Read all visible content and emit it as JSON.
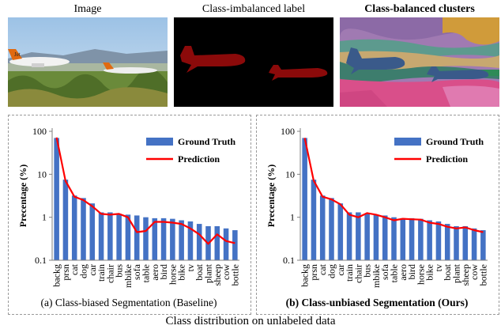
{
  "panels": {
    "image_title": "Image",
    "label_title": "Class-imbalanced label",
    "clusters_title": "Class-balanced clusters"
  },
  "image_lettering": "Jet",
  "colors": {
    "ground_truth": "#4472C4",
    "prediction": "#FF0000",
    "label_red": "#8B0A0A",
    "border": "#9a9a9a"
  },
  "footer": {
    "caption": "Class distribution on unlabeled data"
  },
  "chart_data": [
    {
      "type": "bar",
      "caption": "(a) Class-biased Segmentation (Baseline)",
      "caption_bold": false,
      "ylabel": "Precentage (%)",
      "xlabel": "",
      "scale": "log",
      "ylim": [
        0.1,
        100
      ],
      "yticks": [
        "100",
        "10",
        "1",
        "0.1"
      ],
      "legend_position": "top-right",
      "categories": [
        "backg",
        "prsn",
        "cat",
        "dog",
        "car",
        "train",
        "chair",
        "bus",
        "mbike",
        "sofa",
        "table",
        "aero",
        "bird",
        "horse",
        "bike",
        "tv",
        "boat",
        "plant",
        "sheep",
        "cow",
        "bottle"
      ],
      "series": [
        {
          "name": "Ground Truth",
          "kind": "bar",
          "values": [
            70,
            7.5,
            3.2,
            2.8,
            2.1,
            1.3,
            1.3,
            1.2,
            1.15,
            1.1,
            1.0,
            0.95,
            0.95,
            0.92,
            0.85,
            0.8,
            0.7,
            0.62,
            0.62,
            0.55,
            0.5
          ]
        },
        {
          "name": "Prediction",
          "kind": "line",
          "values": [
            72,
            7.0,
            3.0,
            2.5,
            1.8,
            1.2,
            1.15,
            1.2,
            1.0,
            0.45,
            0.48,
            0.78,
            0.78,
            0.75,
            0.7,
            0.55,
            0.4,
            0.24,
            0.4,
            0.28,
            0.25
          ]
        }
      ]
    },
    {
      "type": "bar",
      "caption": "(b) Class-unbiased Segmentation (Ours)",
      "caption_bold": true,
      "ylabel": "Precentage (%)",
      "xlabel": "",
      "scale": "log",
      "ylim": [
        0.1,
        100
      ],
      "yticks": [
        "100",
        "10",
        "1",
        "0.1"
      ],
      "legend_position": "top-right",
      "categories": [
        "backg",
        "prsn",
        "cat",
        "dog",
        "car",
        "train",
        "chair",
        "bus",
        "mbike",
        "sofa",
        "table",
        "aero",
        "bird",
        "horse",
        "bike",
        "tv",
        "boat",
        "plant",
        "sheep",
        "cow",
        "bottle"
      ],
      "series": [
        {
          "name": "Ground Truth",
          "kind": "bar",
          "values": [
            70,
            7.5,
            3.2,
            2.8,
            2.1,
            1.3,
            1.3,
            1.2,
            1.15,
            1.1,
            1.0,
            0.95,
            0.95,
            0.92,
            0.85,
            0.8,
            0.7,
            0.62,
            0.62,
            0.55,
            0.5
          ]
        },
        {
          "name": "Prediction",
          "kind": "line",
          "values": [
            70,
            7.2,
            3.0,
            2.6,
            2.0,
            1.15,
            1.0,
            1.25,
            1.15,
            1.0,
            0.85,
            0.92,
            0.9,
            0.88,
            0.75,
            0.7,
            0.6,
            0.55,
            0.58,
            0.5,
            0.45
          ]
        }
      ]
    }
  ]
}
